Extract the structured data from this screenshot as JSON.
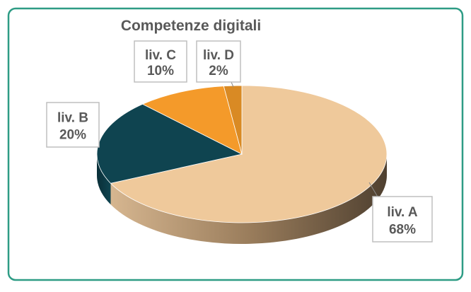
{
  "chart_data": {
    "type": "pie",
    "title": "Competenze digitali",
    "categories": [
      "liv. A",
      "liv. B",
      "liv. C",
      "liv. D"
    ],
    "values": [
      68,
      20,
      10,
      2
    ],
    "value_labels": [
      "68%",
      "20%",
      "10%",
      "2%"
    ],
    "colors": [
      "#efc99b",
      "#0f4450",
      "#f49a2a",
      "#d98a24"
    ]
  }
}
